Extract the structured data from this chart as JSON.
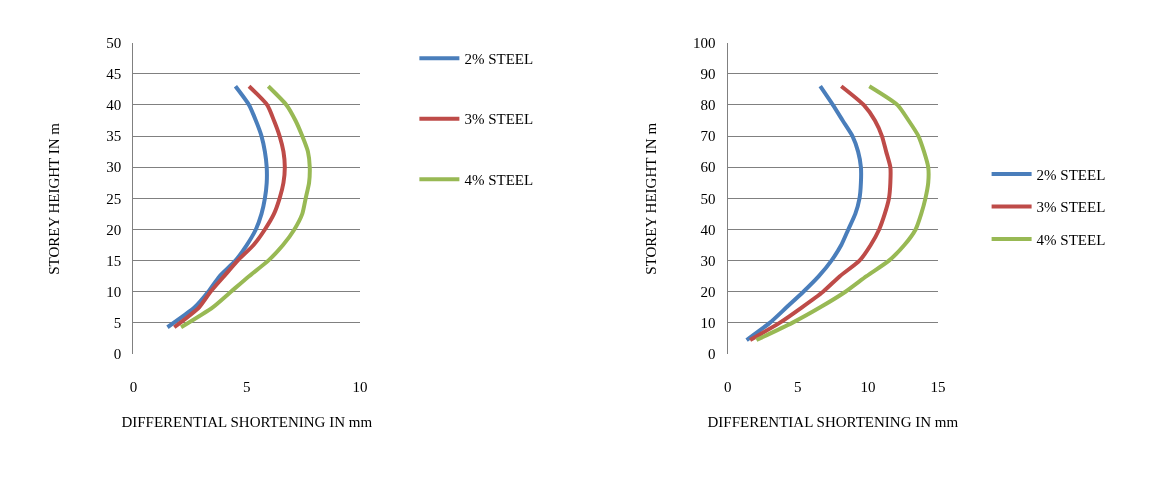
{
  "chart_data": [
    {
      "type": "line",
      "xlabel": "DIFFERENTIAL SHORTENING IN mm",
      "ylabel": "STOREY HEIGHT IN m",
      "xlim": [
        0,
        10
      ],
      "xticks": [
        0,
        5,
        10
      ],
      "ylim": [
        0,
        50
      ],
      "yticks": [
        0,
        5,
        10,
        15,
        20,
        25,
        30,
        35,
        40,
        45,
        50
      ],
      "grid": "y",
      "legend": "right",
      "line_style": "solid",
      "marker": "none",
      "series": [
        {
          "name": "2% STEEL",
          "color": "#4a7ebb",
          "x": [
            1.5,
            2.7,
            3.3,
            3.8,
            4.5,
            5.0,
            5.4,
            5.65,
            5.8,
            5.88,
            5.88,
            5.8,
            5.65,
            5.4,
            5.1,
            4.5
          ],
          "values": [
            4.3,
            7.5,
            10,
            12.5,
            15,
            17.5,
            20,
            22.5,
            25,
            27.5,
            30,
            32.5,
            35,
            37.5,
            40,
            43
          ]
        },
        {
          "name": "3% STEEL",
          "color": "#be4b48",
          "x": [
            1.8,
            2.9,
            3.4,
            4.0,
            4.6,
            5.3,
            5.8,
            6.2,
            6.45,
            6.62,
            6.68,
            6.62,
            6.45,
            6.2,
            5.9,
            5.1
          ],
          "values": [
            4.3,
            7.5,
            10,
            12.5,
            15,
            17.5,
            20,
            22.5,
            25,
            27.5,
            30,
            32.5,
            35,
            37.5,
            40,
            43
          ]
        },
        {
          "name": "4% STEEL",
          "color": "#98b954",
          "x": [
            2.1,
            3.5,
            4.3,
            5.1,
            5.95,
            6.6,
            7.1,
            7.45,
            7.6,
            7.75,
            7.78,
            7.7,
            7.45,
            7.15,
            6.75,
            5.95
          ],
          "values": [
            4.3,
            7.5,
            10,
            12.5,
            15,
            17.5,
            20,
            22.5,
            25,
            27.5,
            30,
            32.5,
            35,
            37.5,
            40,
            43
          ]
        }
      ]
    },
    {
      "type": "line",
      "xlabel": "DIFFERENTIAL SHORTENING IN mm",
      "ylabel": "STOREY HEIGHT IN m",
      "xlim": [
        0,
        15
      ],
      "xticks": [
        0,
        5,
        10,
        15
      ],
      "ylim": [
        0,
        100
      ],
      "yticks": [
        0,
        10,
        20,
        30,
        40,
        50,
        60,
        70,
        80,
        90,
        100
      ],
      "grid": "y",
      "legend": "right",
      "line_style": "solid",
      "marker": "none",
      "series": [
        {
          "name": "2% STEEL",
          "color": "#4a7ebb",
          "x": [
            1.35,
            3.0,
            4.2,
            5.4,
            6.5,
            7.4,
            8.1,
            8.6,
            9.1,
            9.4,
            9.5,
            9.5,
            9.3,
            8.9,
            8.2,
            7.5,
            6.6
          ],
          "values": [
            4.5,
            10,
            15,
            20,
            25,
            30,
            35,
            40,
            45,
            50,
            55,
            60,
            65,
            70,
            75,
            80,
            86
          ]
        },
        {
          "name": "3% STEEL",
          "color": "#be4b48",
          "x": [
            1.6,
            3.7,
            5.3,
            6.8,
            8.0,
            9.4,
            10.2,
            10.8,
            11.2,
            11.5,
            11.6,
            11.6,
            11.3,
            11.0,
            10.5,
            9.7,
            8.1
          ],
          "values": [
            4.5,
            10,
            15,
            20,
            25,
            30,
            35,
            40,
            45,
            50,
            55,
            60,
            65,
            70,
            75,
            80,
            86
          ]
        },
        {
          "name": "4% STEEL",
          "color": "#98b954",
          "x": [
            2.05,
            4.6,
            6.6,
            8.4,
            9.9,
            11.5,
            12.6,
            13.4,
            13.8,
            14.1,
            14.3,
            14.3,
            14.0,
            13.6,
            12.9,
            12.1,
            10.1
          ],
          "values": [
            4.5,
            10,
            15,
            20,
            25,
            30,
            35,
            40,
            45,
            50,
            55,
            60,
            65,
            70,
            75,
            80,
            86
          ]
        }
      ]
    }
  ]
}
